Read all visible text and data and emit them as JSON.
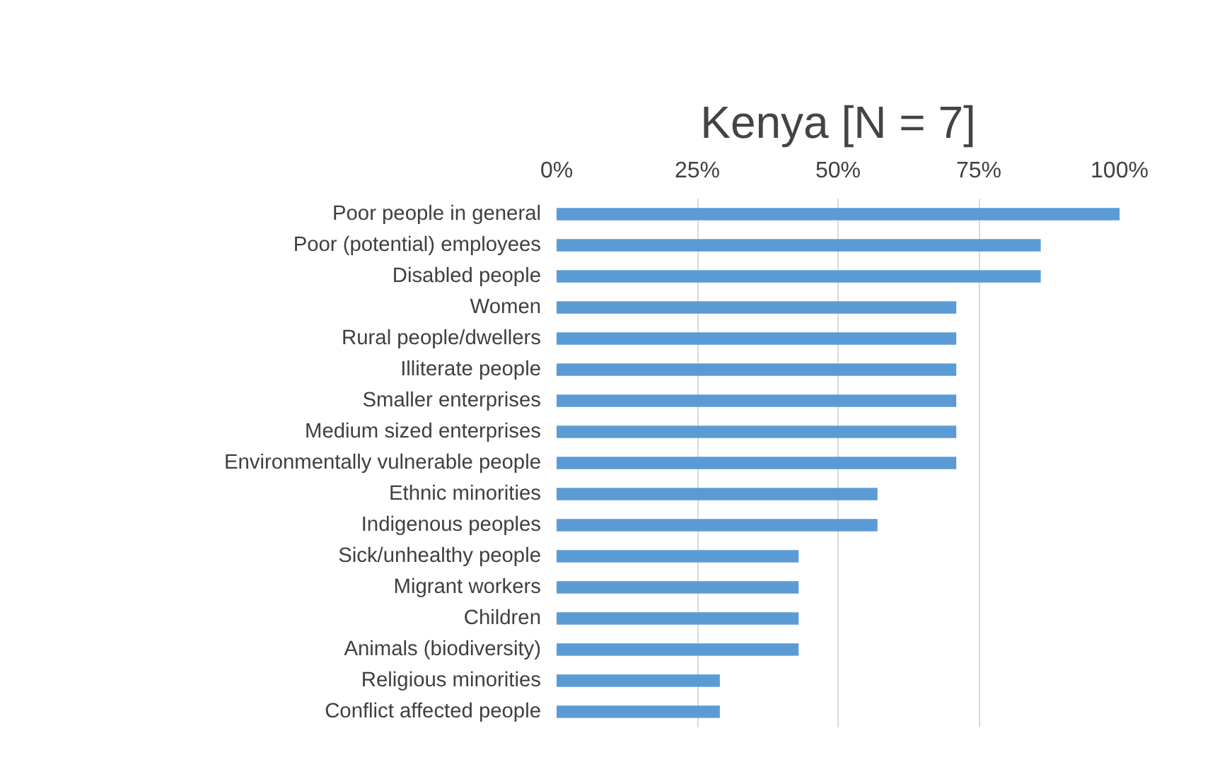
{
  "chart_data": {
    "type": "bar",
    "orientation": "horizontal",
    "title": "Kenya [N = 7]",
    "categories": [
      "Poor people in general",
      "Poor (potential) employees",
      "Disabled people",
      "Women",
      "Rural people/dwellers",
      "Illiterate people",
      "Smaller enterprises",
      "Medium sized enterprises",
      "Environmentally vulnerable people",
      "Ethnic minorities",
      "Indigenous peoples",
      "Sick/unhealthy people",
      "Migrant workers",
      "Children",
      "Animals (biodiversity)",
      "Religious minorities",
      "Conflict affected people"
    ],
    "values": [
      100,
      86,
      86,
      71,
      71,
      71,
      71,
      71,
      71,
      57,
      57,
      43,
      43,
      43,
      43,
      29,
      29
    ],
    "color": "#5b9bd5",
    "xlim": [
      0,
      100
    ],
    "xticks": [
      {
        "value": 0,
        "label": "0%"
      },
      {
        "value": 25,
        "label": "25%"
      },
      {
        "value": 50,
        "label": "50%"
      },
      {
        "value": 75,
        "label": "75%"
      },
      {
        "value": 100,
        "label": "100%"
      }
    ],
    "grid": "x"
  }
}
